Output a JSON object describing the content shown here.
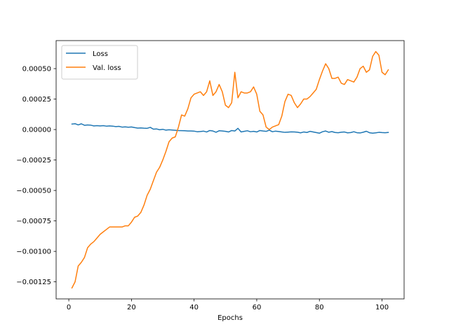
{
  "chart_data": {
    "type": "line",
    "title": "",
    "xlabel": "Epochs",
    "ylabel": "",
    "xlim": [
      -4.05,
      107.05
    ],
    "ylim": [
      -0.00139,
      0.00073
    ],
    "x_ticks": [
      0,
      20,
      40,
      60,
      80,
      100
    ],
    "x_tick_labels": [
      "0",
      "20",
      "40",
      "60",
      "80",
      "100"
    ],
    "y_ticks": [
      -0.00125,
      -0.001,
      -0.00075,
      -0.0005,
      -0.00025,
      0,
      0.00025,
      0.0005
    ],
    "y_tick_labels": [
      "−0.00125",
      "−0.00100",
      "−0.00075",
      "−0.00050",
      "−0.00025",
      "0.00000",
      "0.00025",
      "0.00050"
    ],
    "grid": false,
    "legend_position": "upper-left",
    "series": [
      {
        "name": "Loss",
        "color": "#1f77b4",
        "x": [
          1,
          2,
          3,
          4,
          5,
          6,
          7,
          8,
          9,
          10,
          11,
          12,
          13,
          14,
          15,
          16,
          17,
          18,
          19,
          20,
          21,
          22,
          23,
          24,
          25,
          26,
          27,
          28,
          29,
          30,
          31,
          32,
          33,
          34,
          35,
          36,
          37,
          38,
          39,
          40,
          41,
          42,
          43,
          44,
          45,
          46,
          47,
          48,
          49,
          50,
          51,
          52,
          53,
          54,
          55,
          56,
          57,
          58,
          59,
          60,
          61,
          62,
          63,
          64,
          65,
          66,
          67,
          68,
          69,
          70,
          71,
          72,
          73,
          74,
          75,
          76,
          77,
          78,
          79,
          80,
          81,
          82,
          83,
          84,
          85,
          86,
          87,
          88,
          89,
          90,
          91,
          92,
          93,
          94,
          95,
          96,
          97,
          98,
          99,
          100,
          101,
          102
        ],
        "values": [
          4.5e-05,
          4.8e-05,
          3.8e-05,
          4.7e-05,
          3.5e-05,
          3.8e-05,
          3.6e-05,
          3e-05,
          3.2e-05,
          3e-05,
          3.2e-05,
          2.8e-05,
          3e-05,
          2.8e-05,
          2.4e-05,
          2.6e-05,
          2e-05,
          2.2e-05,
          1.9e-05,
          2.1e-05,
          1.6e-05,
          1.2e-05,
          1.3e-05,
          1.1e-05,
          1e-05,
          1.8e-05,
          3e-06,
          5e-06,
          -2e-06,
          2e-06,
          -5e-06,
          -2e-06,
          -4e-06,
          -6e-06,
          -8e-06,
          -9e-06,
          -1e-05,
          -1.2e-05,
          -1.2e-05,
          -1.3e-05,
          -1.8e-05,
          -1.6e-05,
          -1.3e-05,
          -2e-05,
          -8e-06,
          -1.2e-05,
          -2.2e-05,
          -1e-05,
          -1.2e-05,
          -1.5e-05,
          -2e-05,
          -8e-06,
          -1.2e-05,
          1e-05,
          -2e-05,
          -1.5e-05,
          -1e-05,
          -1.8e-05,
          -1.5e-05,
          -2e-05,
          -8e-06,
          -1.2e-05,
          -1.5e-05,
          -5e-06,
          -1.8e-05,
          -1.3e-05,
          -1.6e-05,
          -2e-05,
          -2.3e-05,
          -2.1e-05,
          -1.9e-05,
          -2e-05,
          -2.2e-05,
          -2.7e-05,
          -2e-05,
          -2.4e-05,
          -1.5e-05,
          -2e-05,
          -2.5e-05,
          -3e-05,
          -1.8e-05,
          -1.2e-05,
          -2.2e-05,
          -1.7e-05,
          -2.4e-05,
          -2.6e-05,
          -2.2e-05,
          -2e-05,
          -2.7e-05,
          -2.5e-05,
          -1.8e-05,
          -2.6e-05,
          -2.8e-05,
          -2.2e-05,
          -1.4e-05,
          -2.6e-05,
          -3e-05,
          -2.7e-05,
          -2.3e-05,
          -2.5e-05,
          -2.6e-05,
          -2.4e-05
        ]
      },
      {
        "name": "Val. loss",
        "color": "#ff7f0e",
        "x": [
          1,
          2,
          3,
          4,
          5,
          6,
          7,
          8,
          9,
          10,
          11,
          12,
          13,
          14,
          15,
          16,
          17,
          18,
          19,
          20,
          21,
          22,
          23,
          24,
          25,
          26,
          27,
          28,
          29,
          30,
          31,
          32,
          33,
          34,
          35,
          36,
          37,
          38,
          39,
          40,
          41,
          42,
          43,
          44,
          45,
          46,
          47,
          48,
          49,
          50,
          51,
          52,
          53,
          54,
          55,
          56,
          57,
          58,
          59,
          60,
          61,
          62,
          63,
          64,
          65,
          66,
          67,
          68,
          69,
          70,
          71,
          72,
          73,
          74,
          75,
          76,
          77,
          78,
          79,
          80,
          81,
          82,
          83,
          84,
          85,
          86,
          87,
          88,
          89,
          90,
          91,
          92,
          93,
          94,
          95,
          96,
          97,
          98,
          99,
          100,
          101,
          102
        ],
        "values": [
          -0.0013,
          -0.00125,
          -0.00112,
          -0.00109,
          -0.00105,
          -0.00097,
          -0.00094,
          -0.00092,
          -0.00089,
          -0.00086,
          -0.00084,
          -0.00082,
          -0.0008,
          -0.0008,
          -0.0008,
          -0.0008,
          -0.0008,
          -0.00079,
          -0.00079,
          -0.00076,
          -0.00072,
          -0.00071,
          -0.00068,
          -0.00062,
          -0.00054,
          -0.00049,
          -0.00042,
          -0.00035,
          -0.00031,
          -0.00025,
          -0.00018,
          -0.0001,
          -7e-05,
          -6e-05,
          2e-05,
          0.00012,
          0.00011,
          0.00017,
          0.00026,
          0.00029,
          0.0003,
          0.00031,
          0.00028,
          0.00031,
          0.0004,
          0.00028,
          0.00031,
          0.00037,
          0.00031,
          0.0002,
          0.00018,
          0.00022,
          0.00047,
          0.00026,
          0.00031,
          0.0003,
          0.0003,
          0.00031,
          0.00035,
          0.00029,
          0.00015,
          0.00012,
          2e-05,
          0.0,
          2e-05,
          3e-05,
          4e-05,
          0.00011,
          0.00023,
          0.00029,
          0.00028,
          0.00022,
          0.00018,
          0.00021,
          0.00025,
          0.00025,
          0.00027,
          0.0003,
          0.00033,
          0.00041,
          0.00048,
          0.00054,
          0.0005,
          0.00042,
          0.00042,
          0.00043,
          0.00038,
          0.00037,
          0.00041,
          0.0004,
          0.00039,
          0.00043,
          0.0005,
          0.00052,
          0.00047,
          0.00049,
          0.0006,
          0.00064,
          0.00061,
          0.00047,
          0.00045,
          0.00049
        ]
      }
    ]
  }
}
